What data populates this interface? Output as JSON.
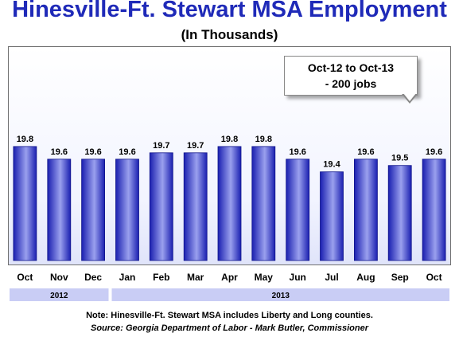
{
  "chart_data": {
    "type": "bar",
    "title": "Hinesville-Ft. Stewart MSA Employment",
    "subtitle": "(In Thousands)",
    "categories": [
      "Oct",
      "Nov",
      "Dec",
      "Jan",
      "Feb",
      "Mar",
      "Apr",
      "May",
      "Jun",
      "Jul",
      "Aug",
      "Sep",
      "Oct"
    ],
    "values": [
      19.8,
      19.6,
      19.6,
      19.6,
      19.7,
      19.7,
      19.8,
      19.8,
      19.6,
      19.4,
      19.6,
      19.5,
      19.6
    ],
    "value_labels": [
      "19.8",
      "19.6",
      "19.6",
      "19.6",
      "19.7",
      "19.7",
      "19.8",
      "19.8",
      "19.6",
      "19.4",
      "19.6",
      "19.5",
      "19.6"
    ],
    "ylim": [
      18.0,
      20.1
    ],
    "grid": false,
    "year_groups": [
      {
        "label": "2012",
        "start": 0,
        "end": 2
      },
      {
        "label": "2013",
        "start": 3,
        "end": 12
      }
    ],
    "annotation": {
      "line1": "Oct-12 to Oct-13",
      "line2": "- 200 jobs"
    },
    "colors": {
      "bar_dark": "#1a1fb0",
      "bar_light": "#9aa0ee",
      "year_band": "#c9cdf5",
      "title": "#1f2ab8"
    }
  },
  "footer": {
    "note": "Note:  Hinesville-Ft. Stewart MSA includes Liberty and Long counties.",
    "source": "Source: Georgia Department of Labor - Mark Butler, Commissioner"
  }
}
